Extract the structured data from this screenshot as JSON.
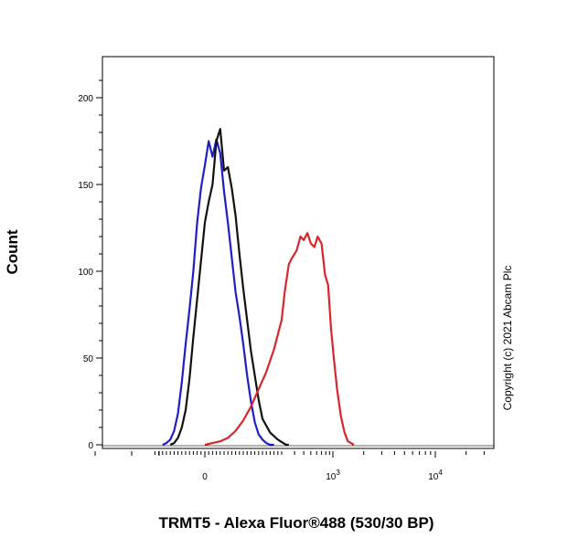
{
  "chart_data": {
    "type": "line",
    "title": "",
    "xlabel": "TRMT5 - Alexa Fluor®488 (530/30 BP)",
    "ylabel": "Count",
    "copyright": "Copyright (c) 2021 Abcam Plc",
    "x_scale": "biexponential",
    "xlim": [
      -150,
      30000
    ],
    "ylim": [
      0,
      220
    ],
    "grid": false,
    "legend": "none",
    "x_ticks": [
      {
        "value": 0,
        "label": "0",
        "sup": ""
      },
      {
        "value": 1000,
        "label": "10",
        "sup": "3"
      },
      {
        "value": 10000,
        "label": "10",
        "sup": "4"
      }
    ],
    "y_ticks": [
      {
        "value": 0,
        "label": "0"
      },
      {
        "value": 50,
        "label": "50"
      },
      {
        "value": 100,
        "label": "100"
      },
      {
        "value": 150,
        "label": "150"
      },
      {
        "value": 200,
        "label": "200"
      }
    ],
    "series": [
      {
        "color": "#1f1fc8",
        "x": [
          -110,
          -100,
          -90,
          -80,
          -70,
          -60,
          -50,
          -40,
          -30,
          -20,
          -10,
          0,
          10,
          20,
          30,
          40,
          50,
          60,
          70,
          80,
          90,
          100,
          110,
          120,
          130,
          140,
          150,
          160,
          170,
          180
        ],
        "y": [
          0,
          1,
          3,
          8,
          18,
          36,
          58,
          78,
          100,
          128,
          148,
          161,
          175,
          166,
          176,
          168,
          146,
          128,
          108,
          88,
          74,
          58,
          40,
          25,
          13,
          6,
          3,
          1,
          0,
          0
        ]
      },
      {
        "color": "#111111",
        "x": [
          -90,
          -80,
          -70,
          -60,
          -50,
          -40,
          -30,
          -20,
          -10,
          0,
          10,
          20,
          30,
          40,
          50,
          60,
          70,
          80,
          90,
          100,
          110,
          120,
          130,
          140,
          150,
          170,
          190,
          210,
          230,
          250
        ],
        "y": [
          0,
          1,
          4,
          10,
          20,
          38,
          62,
          84,
          106,
          128,
          140,
          150,
          175,
          182,
          158,
          160,
          148,
          132,
          110,
          90,
          72,
          54,
          40,
          26,
          15,
          7,
          3,
          1,
          0,
          0
        ]
      },
      {
        "color": "#d9262b",
        "x": [
          0,
          20,
          40,
          60,
          80,
          100,
          120,
          140,
          160,
          180,
          200,
          220,
          250,
          280,
          320,
          360,
          400,
          450,
          500,
          560,
          620,
          700,
          780,
          860,
          940,
          1020,
          1100,
          1200,
          1300,
          1400,
          1600
        ],
        "y": [
          0,
          1,
          2,
          4,
          8,
          14,
          22,
          32,
          42,
          55,
          72,
          88,
          104,
          108,
          112,
          120,
          118,
          122,
          116,
          114,
          120,
          116,
          98,
          92,
          68,
          50,
          32,
          16,
          7,
          2,
          0
        ]
      }
    ]
  }
}
